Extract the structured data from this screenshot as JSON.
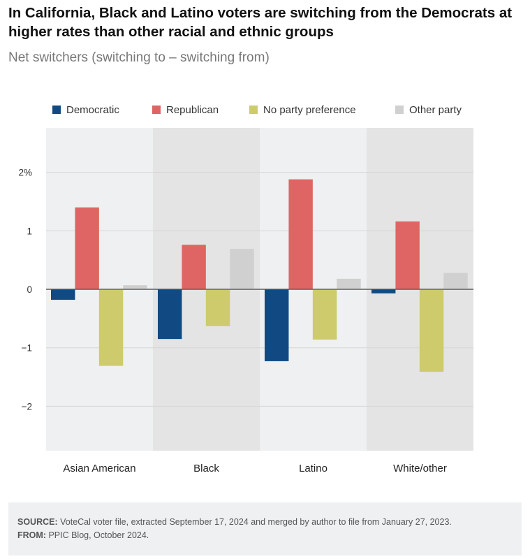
{
  "title": "In California, Black and Latino voters are switching from the Democrats at higher rates than other racial and ethnic groups",
  "subtitle": "Net switchers (switching to – switching from)",
  "footer": {
    "source_label": "SOURCE:",
    "source_text": " VoteCal voter file, extracted September 17, 2024 and merged by author to file from January 27, 2023.",
    "from_label": "FROM:",
    "from_text": " PPIC Blog, October 2024."
  },
  "chart_data": {
    "type": "bar",
    "categories": [
      "Asian American",
      "Black",
      "Latino",
      "White/other"
    ],
    "series": [
      {
        "name": "Democratic",
        "color": "#114a82",
        "values": [
          -0.18,
          -0.85,
          -1.23,
          -0.07
        ]
      },
      {
        "name": "Republican",
        "color": "#de6563",
        "values": [
          1.4,
          0.76,
          1.88,
          1.16
        ]
      },
      {
        "name": "No party preference",
        "color": "#cdcb6c",
        "values": [
          -1.31,
          -0.63,
          -0.86,
          -1.41
        ]
      },
      {
        "name": "Other party",
        "color": "#d0d0d0",
        "values": [
          0.07,
          0.69,
          0.18,
          0.28
        ]
      }
    ],
    "yticks": [
      2,
      1,
      0,
      -1,
      -2
    ],
    "ytick_labels": [
      "2%",
      "1",
      "0",
      "−1",
      "−2"
    ],
    "ylim": [
      -2.76,
      2.76
    ],
    "band_colors": [
      "#eef0f1",
      "#e4e4e4"
    ],
    "grid": true,
    "legend_position": "top"
  }
}
